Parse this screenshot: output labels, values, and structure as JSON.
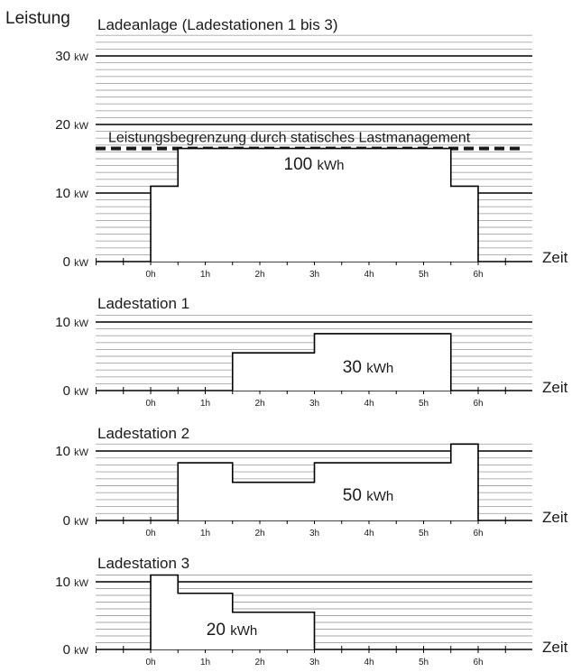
{
  "ylabel": "Leistung",
  "xlabel": "Zeit",
  "power_unit": "kW",
  "colors": {
    "grid_minor": "#a8a8a8",
    "grid_major": "#000000",
    "line": "#000000",
    "limit": "#1a1a1a"
  },
  "chart_data": [
    {
      "type": "line",
      "step": true,
      "title": "Ladeanlage (Ladestationen 1 bis 3)",
      "xlabel": "Zeit",
      "x_ticks": [
        "0h",
        "1h",
        "2h",
        "3h",
        "4h",
        "5h",
        "6h"
      ],
      "y_ticks": [
        0,
        10,
        20,
        30
      ],
      "ylim": [
        0,
        33
      ],
      "xlim": [
        -1,
        7
      ],
      "grid": true,
      "limit_line": {
        "value": 16.5,
        "label": "Leistungsbegrenzung durch statisches Lastmanagement"
      },
      "energy": "100",
      "energy_unit": "kWh",
      "series": [
        {
          "x": [
            0,
            0,
            0.5,
            0.5,
            5.5,
            5.5,
            6,
            6
          ],
          "y": [
            0,
            11,
            11,
            16.5,
            16.5,
            11,
            11,
            0
          ]
        }
      ]
    },
    {
      "type": "line",
      "step": true,
      "title": "Ladestation 1",
      "xlabel": "Zeit",
      "x_ticks": [
        "0h",
        "1h",
        "2h",
        "3h",
        "4h",
        "5h",
        "6h"
      ],
      "y_ticks": [
        0,
        10
      ],
      "ylim": [
        0,
        11
      ],
      "xlim": [
        -1,
        7
      ],
      "grid": true,
      "energy": "30",
      "energy_unit": "kWh",
      "series": [
        {
          "x": [
            1.5,
            1.5,
            3,
            3,
            5.5,
            5.5
          ],
          "y": [
            0,
            5.5,
            5.5,
            8.3,
            8.3,
            0
          ]
        }
      ]
    },
    {
      "type": "line",
      "step": true,
      "title": "Ladestation 2",
      "xlabel": "Zeit",
      "x_ticks": [
        "0h",
        "1h",
        "2h",
        "3h",
        "4h",
        "5h",
        "6h"
      ],
      "y_ticks": [
        0,
        10
      ],
      "ylim": [
        0,
        11
      ],
      "xlim": [
        -1,
        7
      ],
      "grid": true,
      "energy": "50",
      "energy_unit": "kWh",
      "series": [
        {
          "x": [
            0.5,
            0.5,
            1.5,
            1.5,
            3,
            3,
            5.5,
            5.5,
            6,
            6
          ],
          "y": [
            0,
            8.3,
            8.3,
            5.5,
            5.5,
            8.3,
            8.3,
            11,
            11,
            0
          ]
        }
      ]
    },
    {
      "type": "line",
      "step": true,
      "title": "Ladestation 3",
      "xlabel": "Zeit",
      "x_ticks": [
        "0h",
        "1h",
        "2h",
        "3h",
        "4h",
        "5h",
        "6h"
      ],
      "y_ticks": [
        0,
        10
      ],
      "ylim": [
        0,
        11
      ],
      "xlim": [
        -1,
        7
      ],
      "grid": true,
      "energy": "20",
      "energy_unit": "kWh",
      "series": [
        {
          "x": [
            0,
            0,
            0.5,
            0.5,
            1.5,
            1.5,
            3,
            3
          ],
          "y": [
            0,
            11,
            11,
            8.3,
            8.3,
            5.5,
            5.5,
            0
          ]
        }
      ]
    }
  ]
}
